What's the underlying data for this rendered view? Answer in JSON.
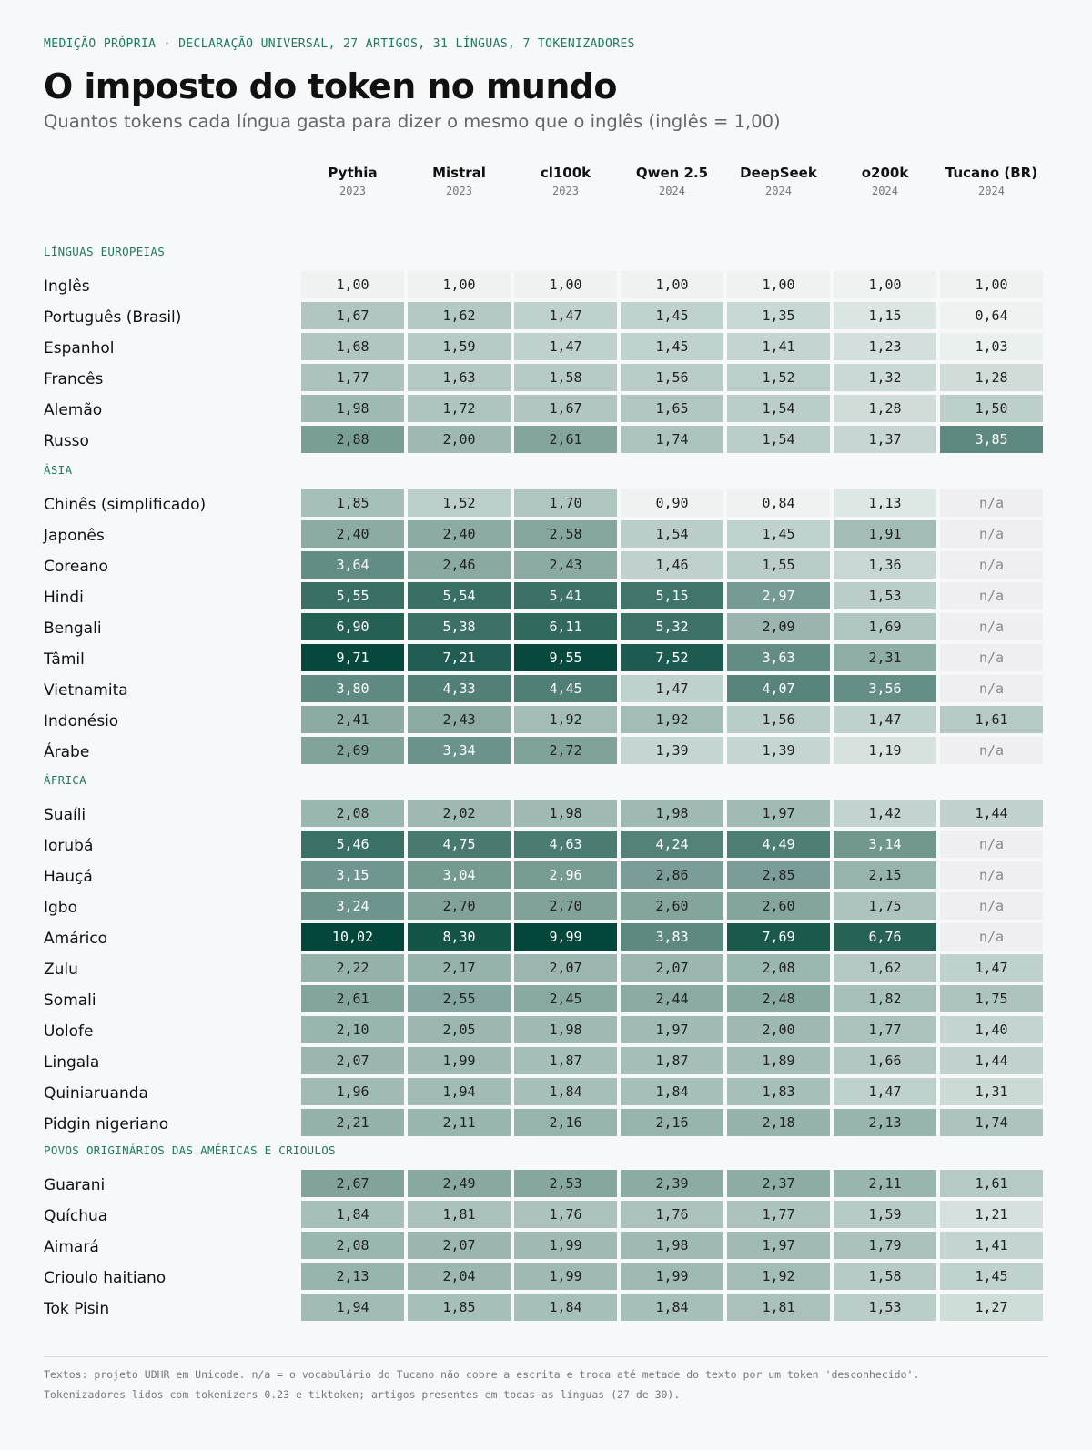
{
  "header": {
    "kicker": "MEDIÇÃO PRÓPRIA · DECLARAÇÃO UNIVERSAL, 27 ARTIGOS, 31 LÍNGUAS, 7 TOKENIZADORES",
    "title": "O imposto do token no mundo",
    "subtitle": "Quantos tokens cada língua gasta para dizer o mesmo que o inglês (inglês = 1,00)"
  },
  "colors": {
    "scale_low": "#eef3f1",
    "scale_high": "#03473a",
    "na_background": "#efeff1",
    "accent": "#1e7a5e"
  },
  "footer": {
    "line1": "Textos: projeto UDHR em Unicode. n/a = o vocabulário do Tucano não cobre a escrita e troca até metade do texto por um token 'desconhecido'.",
    "line2": "Tokenizadores lidos com tokenizers 0.23 e tiktoken; artigos presentes em todas as línguas (27 de 30)."
  },
  "chart_data": {
    "type": "table",
    "value_format": "decimal comma, 2 places; n/a when not covered",
    "columns": [
      {
        "name": "Pythia",
        "year": "2023"
      },
      {
        "name": "Mistral",
        "year": "2023"
      },
      {
        "name": "cl100k",
        "year": "2023"
      },
      {
        "name": "Qwen 2.5",
        "year": "2024"
      },
      {
        "name": "DeepSeek",
        "year": "2024"
      },
      {
        "name": "o200k",
        "year": "2024"
      },
      {
        "name": "Tucano (BR)",
        "year": "2024"
      }
    ],
    "groups": [
      {
        "name": "LÍNGUAS EUROPEIAS",
        "rows": [
          {
            "language": "Inglês",
            "values": [
              1.0,
              1.0,
              1.0,
              1.0,
              1.0,
              1.0,
              1.0
            ]
          },
          {
            "language": "Português (Brasil)",
            "values": [
              1.67,
              1.62,
              1.47,
              1.45,
              1.35,
              1.15,
              0.64
            ]
          },
          {
            "language": "Espanhol",
            "values": [
              1.68,
              1.59,
              1.47,
              1.45,
              1.41,
              1.23,
              1.03
            ]
          },
          {
            "language": "Francês",
            "values": [
              1.77,
              1.63,
              1.58,
              1.56,
              1.52,
              1.32,
              1.28
            ]
          },
          {
            "language": "Alemão",
            "values": [
              1.98,
              1.72,
              1.67,
              1.65,
              1.54,
              1.28,
              1.5
            ]
          },
          {
            "language": "Russo",
            "values": [
              2.88,
              2.0,
              2.61,
              1.74,
              1.54,
              1.37,
              3.85
            ]
          }
        ]
      },
      {
        "name": "ÁSIA",
        "rows": [
          {
            "language": "Chinês (simplificado)",
            "values": [
              1.85,
              1.52,
              1.7,
              0.9,
              0.84,
              1.13,
              null
            ]
          },
          {
            "language": "Japonês",
            "values": [
              2.4,
              2.4,
              2.58,
              1.54,
              1.45,
              1.91,
              null
            ]
          },
          {
            "language": "Coreano",
            "values": [
              3.64,
              2.46,
              2.43,
              1.46,
              1.55,
              1.36,
              null
            ]
          },
          {
            "language": "Hindi",
            "values": [
              5.55,
              5.54,
              5.41,
              5.15,
              2.97,
              1.53,
              null
            ]
          },
          {
            "language": "Bengali",
            "values": [
              6.9,
              5.38,
              6.11,
              5.32,
              2.09,
              1.69,
              null
            ]
          },
          {
            "language": "Tâmil",
            "values": [
              9.71,
              7.21,
              9.55,
              7.52,
              3.63,
              2.31,
              null
            ]
          },
          {
            "language": "Vietnamita",
            "values": [
              3.8,
              4.33,
              4.45,
              1.47,
              4.07,
              3.56,
              null
            ]
          },
          {
            "language": "Indonésio",
            "values": [
              2.41,
              2.43,
              1.92,
              1.92,
              1.56,
              1.47,
              1.61
            ]
          },
          {
            "language": "Árabe",
            "values": [
              2.69,
              3.34,
              2.72,
              1.39,
              1.39,
              1.19,
              null
            ]
          }
        ]
      },
      {
        "name": "ÁFRICA",
        "rows": [
          {
            "language": "Suaíli",
            "values": [
              2.08,
              2.02,
              1.98,
              1.98,
              1.97,
              1.42,
              1.44
            ]
          },
          {
            "language": "Iorubá",
            "values": [
              5.46,
              4.75,
              4.63,
              4.24,
              4.49,
              3.14,
              null
            ]
          },
          {
            "language": "Hauçá",
            "values": [
              3.15,
              3.04,
              2.96,
              2.86,
              2.85,
              2.15,
              null
            ]
          },
          {
            "language": "Igbo",
            "values": [
              3.24,
              2.7,
              2.7,
              2.6,
              2.6,
              1.75,
              null
            ]
          },
          {
            "language": "Amárico",
            "values": [
              10.02,
              8.3,
              9.99,
              3.83,
              7.69,
              6.76,
              null
            ]
          },
          {
            "language": "Zulu",
            "values": [
              2.22,
              2.17,
              2.07,
              2.07,
              2.08,
              1.62,
              1.47
            ]
          },
          {
            "language": "Somali",
            "values": [
              2.61,
              2.55,
              2.45,
              2.44,
              2.48,
              1.82,
              1.75
            ]
          },
          {
            "language": "Uolofe",
            "values": [
              2.1,
              2.05,
              1.98,
              1.97,
              2.0,
              1.77,
              1.4
            ]
          },
          {
            "language": "Lingala",
            "values": [
              2.07,
              1.99,
              1.87,
              1.87,
              1.89,
              1.66,
              1.44
            ]
          },
          {
            "language": "Quiniaruanda",
            "values": [
              1.96,
              1.94,
              1.84,
              1.84,
              1.83,
              1.47,
              1.31
            ]
          },
          {
            "language": "Pidgin nigeriano",
            "values": [
              2.21,
              2.11,
              2.16,
              2.16,
              2.18,
              2.13,
              1.74
            ]
          }
        ]
      },
      {
        "name": "POVOS ORIGINÁRIOS DAS AMÉRICAS E CRIOULOS",
        "rows": [
          {
            "language": "Guarani",
            "values": [
              2.67,
              2.49,
              2.53,
              2.39,
              2.37,
              2.11,
              1.61
            ]
          },
          {
            "language": "Quíchua",
            "values": [
              1.84,
              1.81,
              1.76,
              1.76,
              1.77,
              1.59,
              1.21
            ]
          },
          {
            "language": "Aimará",
            "values": [
              2.08,
              2.07,
              1.99,
              1.98,
              1.97,
              1.79,
              1.41
            ]
          },
          {
            "language": "Crioulo haitiano",
            "values": [
              2.13,
              2.04,
              1.99,
              1.99,
              1.92,
              1.58,
              1.45
            ]
          },
          {
            "language": "Tok Pisin",
            "values": [
              1.94,
              1.85,
              1.84,
              1.84,
              1.81,
              1.53,
              1.27
            ]
          }
        ]
      }
    ]
  }
}
